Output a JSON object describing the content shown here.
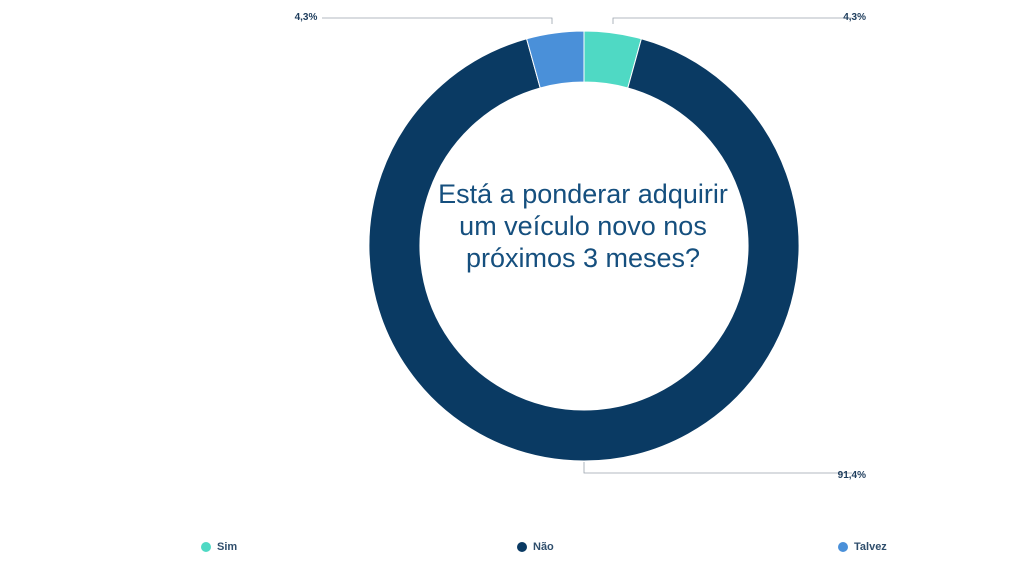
{
  "chart_data": {
    "type": "pie",
    "donut": true,
    "title": "Está a ponderar adquirir um veículo novo nos próximos 3 meses?",
    "slices": [
      {
        "label": "Sim",
        "value": 4.3,
        "display": "4,3%",
        "color": "#4fd9c4"
      },
      {
        "label": "Não",
        "value": 91.4,
        "display": "91,4%",
        "color": "#0a3a63"
      },
      {
        "label": "Talvez",
        "value": 4.3,
        "display": "4,3%",
        "color": "#4a90d9"
      }
    ],
    "legend_position": "bottom"
  }
}
